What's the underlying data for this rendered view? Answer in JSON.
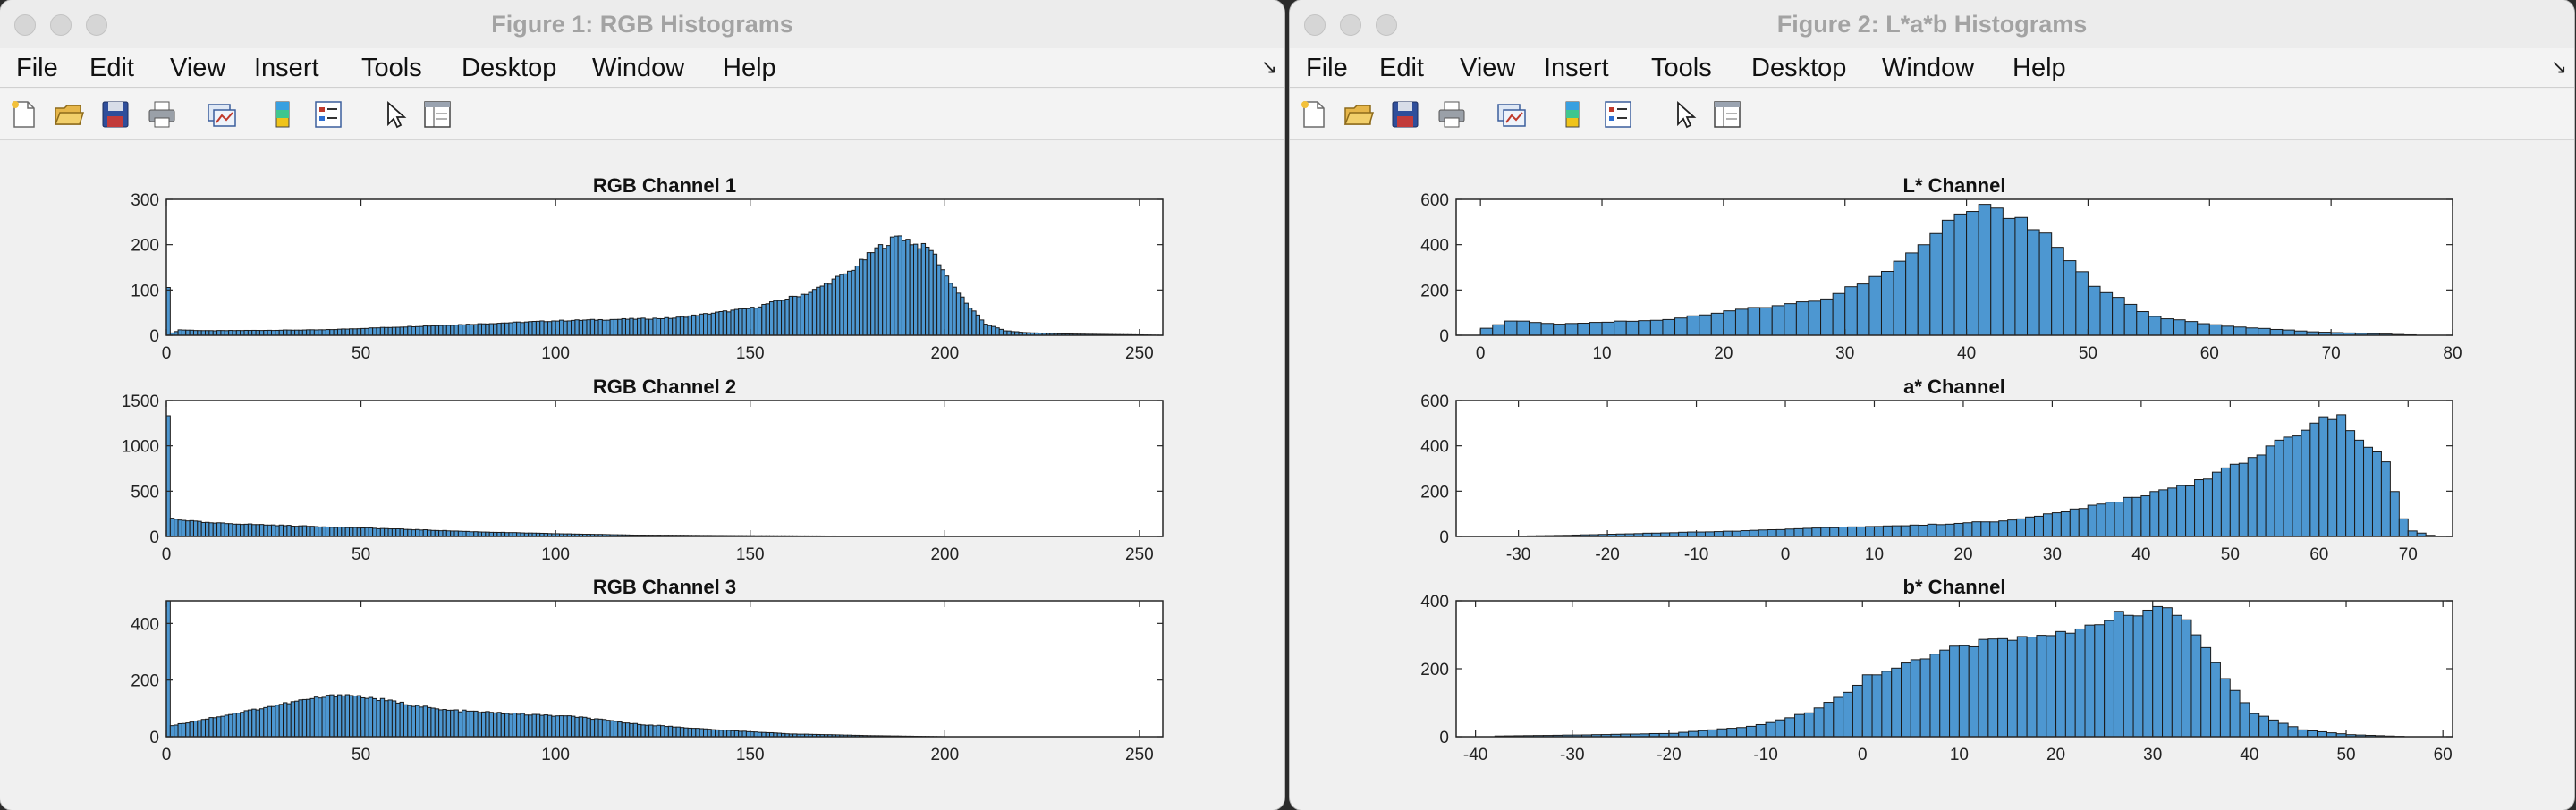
{
  "menu": [
    "File",
    "Edit",
    "View",
    "Insert",
    "Tools",
    "Desktop",
    "Window",
    "Help"
  ],
  "toolbar_icons": [
    "new-figure-icon",
    "open-folder-icon",
    "save-icon",
    "print-icon",
    "link-plot-icon",
    "colorbar-icon",
    "legend-icon",
    "pointer-icon",
    "property-inspector-icon"
  ],
  "colors": {
    "bar_fill": "#4d97d1",
    "bar_edge": "#1a1a1a"
  },
  "figures": [
    {
      "title": "Figure 1: RGB Histograms",
      "axes": [
        {
          "title": "RGB Channel 1",
          "xlim": [
            0,
            256
          ],
          "ylim": [
            0,
            300
          ],
          "xticks": [
            0,
            50,
            100,
            150,
            200,
            250
          ],
          "yticks": [
            0,
            100,
            200,
            300
          ],
          "chart_data": {
            "type": "bar",
            "bin_width": 1,
            "x_start": 0,
            "anchors_x": [
              0,
              1,
              3,
              10,
              40,
              80,
              100,
              130,
              150,
              165,
              175,
              182,
              188,
              192,
              196,
              200,
              205,
              210,
              215,
              220,
              230,
              240,
              250,
              255
            ],
            "anchors_y": [
              110,
              5,
              12,
              10,
              12,
              25,
              32,
              38,
              60,
              95,
              140,
              190,
              220,
              200,
              190,
              130,
              70,
              25,
              10,
              6,
              3,
              2,
              1,
              0
            ]
          }
        },
        {
          "title": "RGB Channel 2",
          "xlim": [
            0,
            256
          ],
          "ylim": [
            0,
            1500
          ],
          "xticks": [
            0,
            50,
            100,
            150,
            200,
            250
          ],
          "yticks": [
            0,
            500,
            1000,
            1500
          ],
          "chart_data": {
            "type": "bar",
            "bin_width": 1,
            "x_start": 0,
            "anchors_x": [
              0,
              1,
              2,
              10,
              30,
              60,
              80,
              100,
              120,
              150,
              170,
              190,
              200,
              255
            ],
            "anchors_y": [
              1320,
              200,
              190,
              150,
              120,
              80,
              50,
              30,
              15,
              8,
              5,
              3,
              0,
              0
            ]
          }
        },
        {
          "title": "RGB Channel 3",
          "xlim": [
            0,
            256
          ],
          "ylim": [
            0,
            480
          ],
          "xticks": [
            0,
            50,
            100,
            150,
            200,
            250
          ],
          "yticks": [
            0,
            200,
            400
          ],
          "chart_data": {
            "type": "bar",
            "bin_width": 1,
            "x_start": 0,
            "anchors_x": [
              0,
              1,
              5,
              20,
              35,
              45,
              55,
              70,
              90,
              105,
              120,
              140,
              160,
              180,
              195,
              200,
              255
            ],
            "anchors_y": [
              470,
              40,
              50,
              90,
              130,
              150,
              130,
              95,
              80,
              70,
              45,
              25,
              10,
              4,
              1,
              0,
              0
            ]
          }
        }
      ]
    },
    {
      "title": "Figure 2: L*a*b Histograms",
      "axes": [
        {
          "title": "L* Channel",
          "xlim": [
            -2,
            80
          ],
          "ylim": [
            0,
            600
          ],
          "xticks": [
            0,
            10,
            20,
            30,
            40,
            50,
            60,
            70,
            80
          ],
          "yticks": [
            0,
            200,
            400,
            600
          ],
          "chart_data": {
            "type": "bar",
            "bin_width": 1,
            "x_start": 0,
            "anchors_x": [
              0,
              2,
              6,
              15,
              22,
              28,
              33,
              36,
              39,
              41,
              44,
              46,
              48,
              50,
              55,
              60,
              68,
              76,
              77
            ],
            "anchors_y": [
              30,
              65,
              50,
              70,
              120,
              160,
              280,
              400,
              540,
              560,
              520,
              450,
              330,
              220,
              80,
              45,
              15,
              2,
              0
            ]
          }
        },
        {
          "title": "a* Channel",
          "xlim": [
            -37,
            75
          ],
          "ylim": [
            0,
            600
          ],
          "xticks": [
            -30,
            -20,
            -10,
            0,
            10,
            20,
            30,
            40,
            50,
            60,
            70
          ],
          "yticks": [
            0,
            200,
            400,
            600
          ],
          "chart_data": {
            "type": "bar",
            "bin_width": 1,
            "x_start": -33,
            "anchors_x": [
              -33,
              -25,
              -15,
              -5,
              5,
              15,
              25,
              35,
              45,
              52,
              56,
              60,
              62,
              64,
              67,
              69,
              70,
              72,
              73
            ],
            "anchors_y": [
              0,
              5,
              15,
              25,
              40,
              50,
              70,
              140,
              230,
              340,
              440,
              520,
              520,
              440,
              320,
              80,
              25,
              5,
              0
            ]
          }
        },
        {
          "title": "b* Channel",
          "xlim": [
            -42,
            61
          ],
          "ylim": [
            0,
            400
          ],
          "xticks": [
            -40,
            -30,
            -20,
            -10,
            0,
            10,
            20,
            30,
            40,
            50,
            60
          ],
          "yticks": [
            0,
            200,
            400
          ],
          "chart_data": {
            "type": "bar",
            "bin_width": 1,
            "x_start": -38,
            "anchors_x": [
              -38,
              -30,
              -20,
              -12,
              -6,
              -2,
              0,
              5,
              10,
              15,
              20,
              25,
              30,
              33,
              35,
              37,
              40,
              45,
              50,
              56
            ],
            "anchors_y": [
              2,
              5,
              10,
              30,
              70,
              130,
              180,
              220,
              270,
              290,
              300,
              350,
              380,
              340,
              260,
              170,
              70,
              20,
              6,
              0
            ]
          }
        }
      ]
    }
  ]
}
